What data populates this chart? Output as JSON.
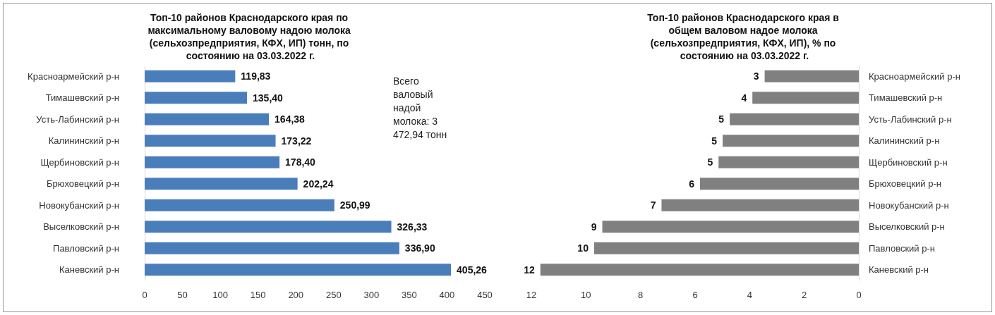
{
  "chart_data": [
    {
      "type": "bar",
      "orientation": "horizontal",
      "title": "Топ-10 районов Краснодарского края по максимальному валовому надою молока (сельхозпредприятия, КФХ, ИП) тонн, по состоянию на 03.03.2022 г.",
      "categories": [
        "Красноармейский р-н",
        "Тимашевский р-н",
        "Усть-Лабинский р-н",
        "Калининский р-н",
        "Щербиновский р-н",
        "Брюховецкий р-н",
        "Новокубанский р-н",
        "Выселковский р-н",
        "Павловский р-н",
        "Каневский р-н"
      ],
      "values": [
        119.83,
        135.4,
        164.38,
        173.22,
        178.4,
        202.24,
        250.99,
        326.33,
        336.9,
        405.26
      ],
      "value_labels": [
        "119,83",
        "135,40",
        "164,38",
        "173,22",
        "178,40",
        "202,24",
        "250,99",
        "326,33",
        "336,90",
        "405,26"
      ],
      "color": "#4a7ebb",
      "xlim": [
        0,
        450
      ],
      "xticks": [
        0,
        50,
        100,
        150,
        200,
        250,
        300,
        350,
        400,
        450
      ],
      "annotations": [
        "Всего валовый надой молока: 3 472,94 тонн"
      ]
    },
    {
      "type": "bar",
      "orientation": "horizontal",
      "title": "Топ-10 районов Краснодарского края в общем валовом надое молока (сельхозпредприятия, КФХ, ИП), % по состоянию на 03.03.2022 г.",
      "categories": [
        "Красноармейский р-н",
        "Тимашевский р-н",
        "Усть-Лабинский р-н",
        "Калининский р-н",
        "Щербиновский р-н",
        "Брюховецкий р-н",
        "Новокубанский р-н",
        "Выселковский р-н",
        "Павловский р-н",
        "Каневский р-н"
      ],
      "values": [
        3.45,
        3.9,
        4.73,
        4.99,
        5.14,
        5.82,
        7.23,
        9.4,
        9.7,
        11.67
      ],
      "value_labels": [
        "3",
        "4",
        "5",
        "5",
        "5",
        "6",
        "7",
        "9",
        "10",
        "12"
      ],
      "color": "#808080",
      "xlim": [
        12,
        0
      ],
      "xticks": [
        12,
        10,
        8,
        6,
        4,
        2,
        0
      ]
    }
  ]
}
